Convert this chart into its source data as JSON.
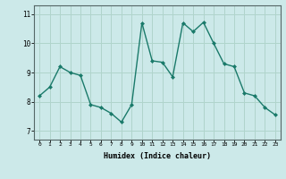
{
  "x": [
    0,
    1,
    2,
    3,
    4,
    5,
    6,
    7,
    8,
    9,
    10,
    11,
    12,
    13,
    14,
    15,
    16,
    17,
    18,
    19,
    20,
    21,
    22,
    23
  ],
  "y": [
    8.2,
    8.5,
    9.2,
    9.0,
    8.9,
    7.9,
    7.8,
    7.6,
    7.3,
    7.9,
    10.7,
    9.4,
    9.35,
    8.85,
    10.7,
    10.4,
    10.72,
    10.0,
    9.3,
    9.2,
    8.3,
    8.2,
    7.8,
    7.55
  ],
  "line_color": "#1a7a6a",
  "marker_color": "#1a7a6a",
  "bg_color": "#cce9e9",
  "grid_color": "#b0d4cc",
  "xlabel": "Humidex (Indice chaleur)",
  "ylabel_ticks": [
    7,
    8,
    9,
    10,
    11
  ],
  "xlim": [
    -0.5,
    23.5
  ],
  "ylim": [
    6.7,
    11.3
  ]
}
